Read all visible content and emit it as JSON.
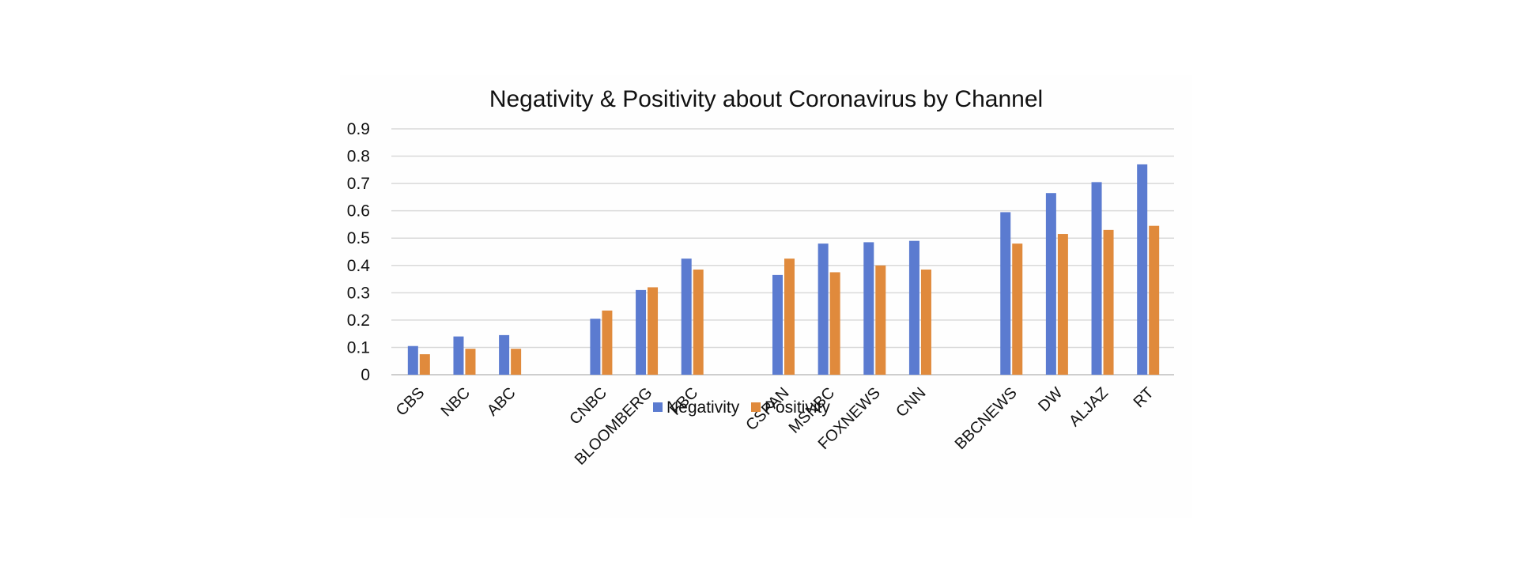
{
  "chart_data": {
    "type": "bar",
    "title": "Negativity & Positivity about Coronavirus by Channel",
    "xlabel": "",
    "ylabel": "",
    "ylim": [
      0,
      0.9
    ],
    "yticks": [
      "0",
      "0.1",
      "0.2",
      "0.3",
      "0.4",
      "0.5",
      "0.6",
      "0.7",
      "0.8",
      "0.9"
    ],
    "grid": true,
    "legend_position": "bottom",
    "categories": [
      "CBS",
      "NBC",
      "ABC",
      "",
      "CNBC",
      "BLOOMBERG",
      "FBC",
      "",
      "CSPAN",
      "MSNBC",
      "FOXNEWS",
      "CNN",
      "",
      "BBCNEWS",
      "DW",
      "ALJAZ",
      "RT"
    ],
    "series": [
      {
        "name": "Negativity",
        "color": "#5b7bd0",
        "values": [
          0.105,
          0.14,
          0.145,
          null,
          0.205,
          0.31,
          0.425,
          null,
          0.365,
          0.48,
          0.485,
          0.49,
          null,
          0.595,
          0.665,
          0.705,
          0.77
        ]
      },
      {
        "name": "Positivity",
        "color": "#e08a3c",
        "values": [
          0.075,
          0.095,
          0.095,
          null,
          0.235,
          0.32,
          0.385,
          null,
          0.425,
          0.375,
          0.4,
          0.385,
          null,
          0.48,
          0.515,
          0.53,
          0.545
        ]
      }
    ]
  }
}
